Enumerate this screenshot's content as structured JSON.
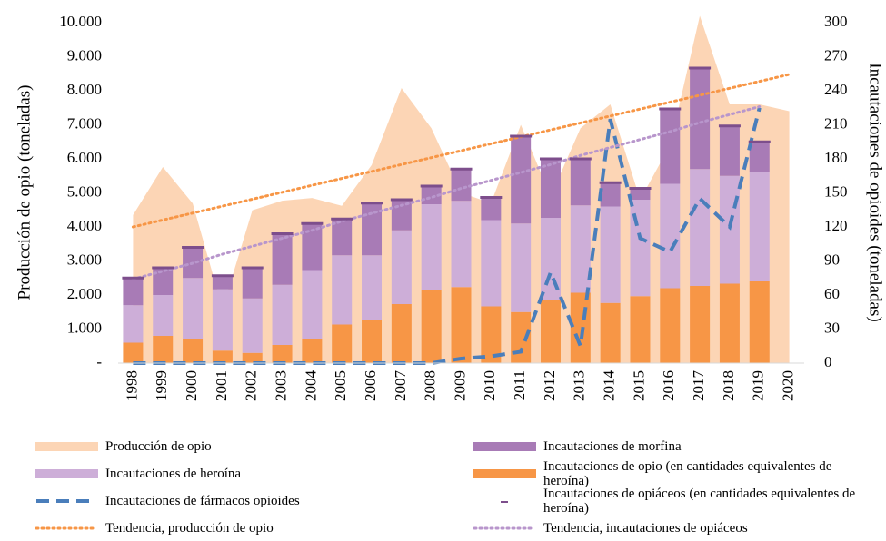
{
  "chart_data": {
    "type": "combo",
    "y_label": "Producción de opio (toneladas)",
    "y2_label": "Incautaciones de opioides (toneladas)",
    "categories": [
      "1998",
      "1999",
      "2000",
      "2001",
      "2002",
      "2003",
      "2004",
      "2005",
      "2006",
      "2007",
      "2008",
      "2009",
      "2010",
      "2011",
      "2012",
      "2013",
      "2014",
      "2015",
      "2016",
      "2017",
      "2018",
      "2019",
      "2020"
    ],
    "ylim": [
      0,
      10000
    ],
    "yticks": [
      {
        "value": 0,
        "label": "-"
      },
      {
        "value": 1000,
        "label": "1.000"
      },
      {
        "value": 2000,
        "label": "2.000"
      },
      {
        "value": 3000,
        "label": "3.000"
      },
      {
        "value": 4000,
        "label": "4.000"
      },
      {
        "value": 5000,
        "label": "5.000"
      },
      {
        "value": 6000,
        "label": "6.000"
      },
      {
        "value": 7000,
        "label": "7.000"
      },
      {
        "value": 8000,
        "label": "8.000"
      },
      {
        "value": 9000,
        "label": "9.000"
      },
      {
        "value": 10000,
        "label": "10.000"
      }
    ],
    "y2lim": [
      0,
      300
    ],
    "y2ticks": [
      0,
      30,
      60,
      90,
      120,
      150,
      180,
      210,
      240,
      270,
      300
    ],
    "grid": false,
    "series": [
      {
        "name": "Producción de opio",
        "type": "area",
        "axis": "y",
        "color": "#fcd5b5",
        "values": [
          4350,
          5760,
          4690,
          1600,
          4490,
          4770,
          4850,
          4620,
          5820,
          8080,
          6900,
          5000,
          4700,
          7000,
          4900,
          6900,
          7600,
          4800,
          6400,
          10200,
          7600,
          7600,
          7400
        ]
      },
      {
        "name": "Incautaciones de morfina",
        "type": "bar",
        "axis": "y2",
        "stack": 3,
        "color": "#a87bb6",
        "values": [
          24,
          24,
          27,
          12,
          27,
          45,
          41,
          32,
          46,
          27,
          16,
          28,
          20,
          77,
          52,
          41,
          21,
          10,
          66,
          89,
          44,
          27,
          null
        ]
      },
      {
        "name": "Incautaciones de heroína",
        "type": "bar",
        "axis": "y2",
        "stack": 2,
        "color": "#cdaed8",
        "values": [
          33,
          36,
          54,
          54,
          48,
          53,
          61,
          61,
          57,
          65,
          76,
          76,
          76,
          78,
          72,
          77,
          85,
          85,
          92,
          103,
          95,
          96,
          null
        ]
      },
      {
        "name": "Incautaciones de opio (en cantidades equivalentes de heroína)",
        "type": "bar",
        "axis": "y2",
        "stack": 1,
        "color": "#f79646",
        "values": [
          18,
          24,
          21,
          11,
          9,
          16,
          21,
          34,
          38,
          52,
          64,
          67,
          50,
          45,
          56,
          62,
          53,
          59,
          66,
          68,
          70,
          72,
          null
        ]
      },
      {
        "name": "Incautaciones de fármacos opioides",
        "type": "line",
        "axis": "y2",
        "dash": "dashed",
        "color": "#4a7ebb",
        "values": [
          0,
          0,
          0,
          0,
          0,
          0,
          0,
          0,
          0,
          0,
          0,
          4,
          6,
          10,
          80,
          15,
          215,
          110,
          98,
          145,
          120,
          225,
          null
        ]
      },
      {
        "name": "Incautaciones de opiáceos (en cantidades equivalentes de heroína)",
        "type": "marker",
        "axis": "y2",
        "color": "#7d4e8c",
        "values": [
          75,
          84,
          102,
          77,
          84,
          114,
          123,
          127,
          141,
          144,
          156,
          171,
          146,
          200,
          180,
          180,
          159,
          154,
          224,
          260,
          209,
          195,
          null
        ]
      },
      {
        "name": "Tendencia, producción de opio",
        "type": "line",
        "axis": "y",
        "dash": "dotted",
        "color": "#f79646",
        "values": [
          4000,
          4204,
          4407,
          4611,
          4815,
          5018,
          5222,
          5425,
          5629,
          5833,
          6036,
          6240,
          6444,
          6647,
          6851,
          7055,
          7258,
          7462,
          7665,
          7869,
          8073,
          8276,
          8480
        ]
      },
      {
        "name": "Tendencia, incautaciones de opiáceos",
        "type": "line",
        "axis": "y2",
        "dash": "dotted",
        "color": "#b896cc",
        "values": [
          74,
          81,
          88,
          96,
          103,
          110,
          117,
          125,
          132,
          139,
          146,
          154,
          161,
          168,
          175,
          183,
          190,
          197,
          204,
          212,
          219,
          226,
          null
        ]
      }
    ]
  }
}
